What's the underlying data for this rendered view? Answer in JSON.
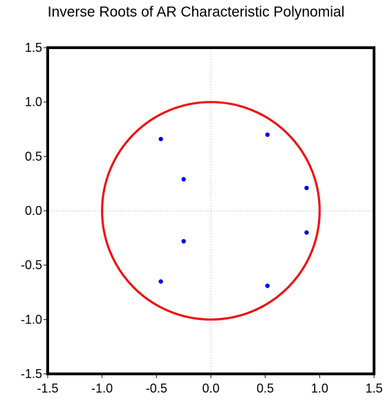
{
  "chart_data": {
    "type": "scatter",
    "title": "Inverse Roots of AR Characteristic Polynomial",
    "xlabel": "",
    "ylabel": "",
    "xlim": [
      -1.5,
      1.5
    ],
    "ylim": [
      -1.5,
      1.5
    ],
    "x_ticks": [
      "-1.5",
      "-1.0",
      "-0.5",
      "0.0",
      "0.5",
      "1.0",
      "1.5"
    ],
    "y_ticks": [
      "1.5",
      "1.0",
      "0.5",
      "0.0",
      "-0.5",
      "-1.0",
      "-1.5"
    ],
    "x_tick_values": [
      -1.5,
      -1.0,
      -0.5,
      0.0,
      0.5,
      1.0,
      1.5
    ],
    "y_tick_values": [
      1.5,
      1.0,
      0.5,
      0.0,
      -0.5,
      -1.0,
      -1.5
    ],
    "unit_circle": {
      "radius": 1.0,
      "color": "#ee1111"
    },
    "points": [
      {
        "x": -0.46,
        "y": 0.66
      },
      {
        "x": -0.25,
        "y": 0.29
      },
      {
        "x": -0.25,
        "y": -0.28
      },
      {
        "x": -0.46,
        "y": -0.65
      },
      {
        "x": 0.52,
        "y": 0.7
      },
      {
        "x": 0.88,
        "y": 0.21
      },
      {
        "x": 0.88,
        "y": -0.2
      },
      {
        "x": 0.52,
        "y": -0.69
      }
    ],
    "point_color": "#0000ee",
    "grid": "zero-lines",
    "legend": "none"
  }
}
